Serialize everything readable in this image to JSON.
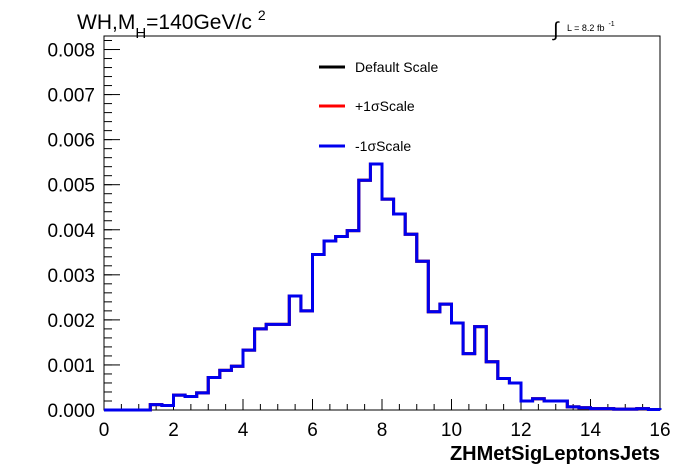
{
  "chart_data": {
    "type": "line",
    "title": {
      "prefix": "WH,M",
      "sub": "H",
      "mid": "=140GeV/c",
      "sup": "2"
    },
    "lumi": {
      "symbol": "∫",
      "text": "L = 8.2 fb",
      "sup": "-1"
    },
    "xlabel": "ZHMetSigLeptonsJets",
    "ylabel": "",
    "xlim": [
      0,
      16
    ],
    "ylim": [
      0,
      0.0083
    ],
    "xticks": [
      "0",
      "2",
      "4",
      "6",
      "8",
      "10",
      "12",
      "14",
      "16"
    ],
    "yticks": [
      "0.000",
      "0.001",
      "0.002",
      "0.003",
      "0.004",
      "0.005",
      "0.006",
      "0.007",
      "0.008"
    ],
    "bin_edges": [
      0,
      0.333,
      0.667,
      1.0,
      1.333,
      1.667,
      2.0,
      2.333,
      2.667,
      3.0,
      3.333,
      3.667,
      4.0,
      4.333,
      4.667,
      5.0,
      5.333,
      5.667,
      6.0,
      6.333,
      6.667,
      7.0,
      7.333,
      7.667,
      8.0,
      8.333,
      8.667,
      9.0,
      9.333,
      9.667,
      10.0,
      10.333,
      10.667,
      11.0,
      11.333,
      11.667,
      12.0,
      12.333,
      12.667,
      13.0,
      13.333,
      13.667,
      14.0,
      14.333,
      14.667,
      15.0,
      15.333,
      15.667,
      16.0
    ],
    "series": [
      {
        "name": "Default Scale",
        "color": "#000000",
        "values": [
          0,
          0,
          0,
          0,
          0.00012,
          0.0001,
          0.00033,
          0.0003,
          0.00038,
          0.00072,
          0.00088,
          0.00097,
          0.00133,
          0.0018,
          0.0019,
          0.0019,
          0.00253,
          0.0022,
          0.00345,
          0.00375,
          0.00385,
          0.00398,
          0.0051,
          0.00546,
          0.00468,
          0.00435,
          0.0039,
          0.0033,
          0.00218,
          0.00235,
          0.00193,
          0.00125,
          0.00185,
          0.00107,
          0.0007,
          0.0006,
          0.0002,
          0.00025,
          0.0002,
          0.0002,
          7e-05,
          5e-05,
          3e-05,
          3e-05,
          2e-05,
          2e-05,
          3e-05,
          1e-05
        ]
      },
      {
        "name": "+1σScale",
        "color": "#ff0000",
        "values": [
          0,
          0,
          0,
          0,
          0.00012,
          0.0001,
          0.00033,
          0.0003,
          0.00038,
          0.00072,
          0.00088,
          0.00097,
          0.00133,
          0.0018,
          0.0019,
          0.0019,
          0.00253,
          0.0022,
          0.00345,
          0.00375,
          0.00385,
          0.00398,
          0.0051,
          0.00546,
          0.00468,
          0.00435,
          0.0039,
          0.0033,
          0.00218,
          0.00235,
          0.00193,
          0.00125,
          0.00185,
          0.00107,
          0.0007,
          0.0006,
          0.0002,
          0.00025,
          0.0002,
          0.0002,
          7e-05,
          5e-05,
          3e-05,
          3e-05,
          2e-05,
          2e-05,
          3e-05,
          1e-05
        ]
      },
      {
        "name": "-1σScale",
        "color": "#0000ee",
        "values": [
          0,
          0,
          0,
          0,
          0.00012,
          0.0001,
          0.00033,
          0.0003,
          0.00038,
          0.00072,
          0.00088,
          0.00097,
          0.00133,
          0.0018,
          0.0019,
          0.0019,
          0.00253,
          0.0022,
          0.00345,
          0.00375,
          0.00385,
          0.00398,
          0.0051,
          0.00546,
          0.00468,
          0.00435,
          0.0039,
          0.0033,
          0.00218,
          0.00235,
          0.00193,
          0.00125,
          0.00185,
          0.00107,
          0.0007,
          0.0006,
          0.0002,
          0.00025,
          0.0002,
          0.0002,
          7e-05,
          5e-05,
          3e-05,
          3e-05,
          2e-05,
          2e-05,
          3e-05,
          1e-05
        ]
      }
    ],
    "legend_position": "top-center",
    "grid": false
  }
}
